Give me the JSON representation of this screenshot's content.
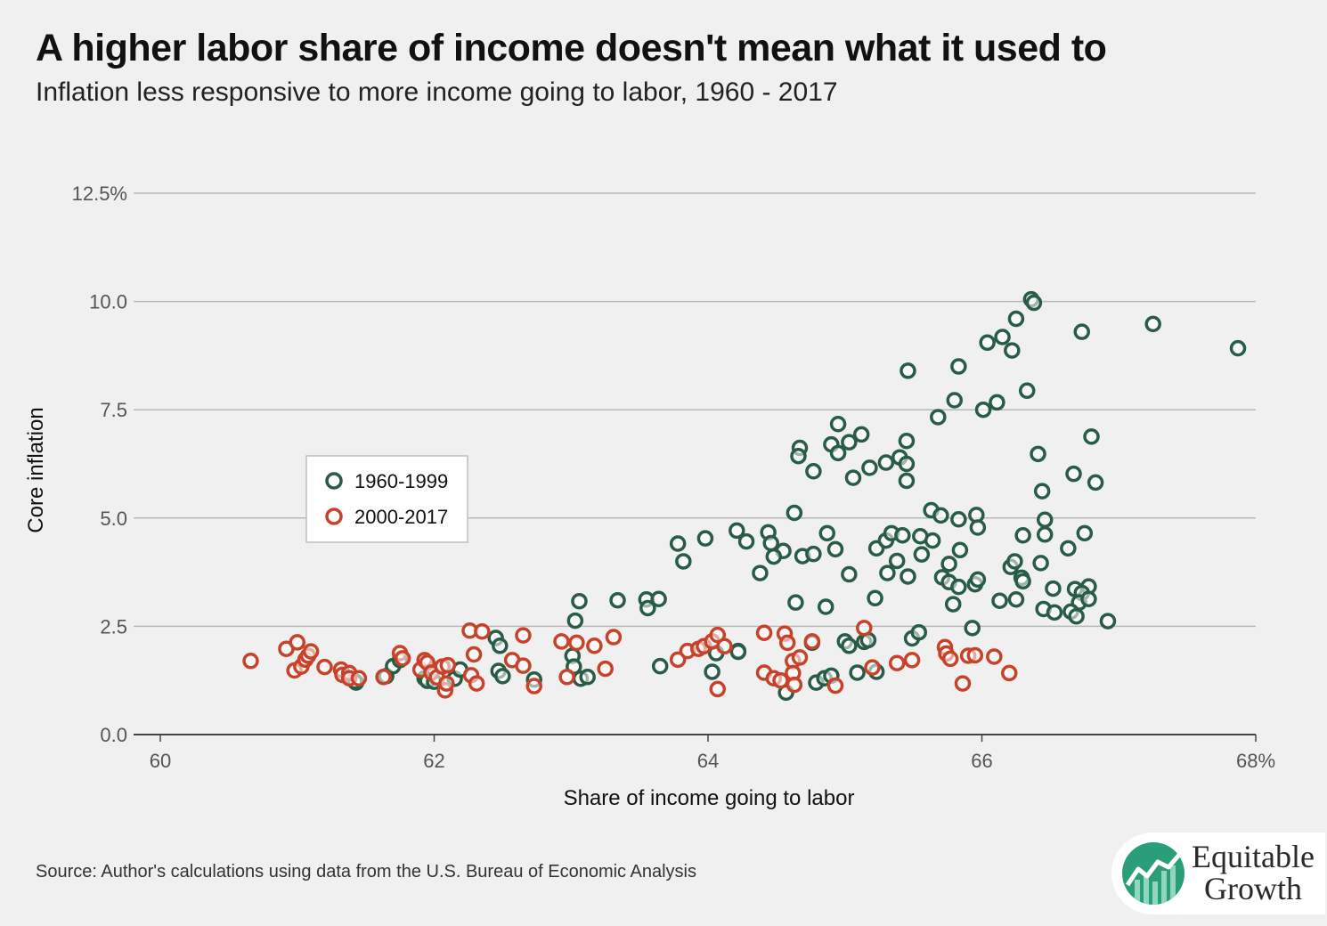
{
  "header": {
    "title": "A higher labor share of income doesn't mean what it used to",
    "subtitle": "Inflation less responsive to more income going to labor, 1960 - 2017"
  },
  "footer": {
    "source": "Source: Author's calculations using data from the U.S. Bureau of Economic Analysis"
  },
  "logo": {
    "line1": "Equitable",
    "line2": "Growth"
  },
  "colors": {
    "series1": "#285c46",
    "series2": "#c8422a",
    "grid": "#b8b8b8",
    "background": "#f0f0f0"
  },
  "chart_data": {
    "type": "scatter",
    "xlabel": "Share of income going to labor",
    "ylabel": "Core inflation",
    "xlim": [
      60,
      68
    ],
    "ylim": [
      0,
      12.5
    ],
    "x_ticks": [
      "60",
      "62",
      "64",
      "66",
      "68%"
    ],
    "y_ticks": [
      "0.0",
      "2.5",
      "5.0",
      "7.5",
      "10.0",
      "12.5%"
    ],
    "grid": "horizontal",
    "legend_position": "left-middle",
    "series": [
      {
        "name": "1960-1999",
        "color": "#285c46",
        "points": [
          [
            66.36,
            10.05
          ],
          [
            66.38,
            9.97
          ],
          [
            67.25,
            9.48
          ],
          [
            67.87,
            8.92
          ],
          [
            66.73,
            9.3
          ],
          [
            66.25,
            9.6
          ],
          [
            66.15,
            9.18
          ],
          [
            66.04,
            9.05
          ],
          [
            66.22,
            8.87
          ],
          [
            65.46,
            8.4
          ],
          [
            65.83,
            8.5
          ],
          [
            66.11,
            7.67
          ],
          [
            66.01,
            7.5
          ],
          [
            65.8,
            7.72
          ],
          [
            66.33,
            7.94
          ],
          [
            65.68,
            7.33
          ],
          [
            64.67,
            6.62
          ],
          [
            64.66,
            6.43
          ],
          [
            64.77,
            6.08
          ],
          [
            64.95,
            7.17
          ],
          [
            64.9,
            6.7
          ],
          [
            64.95,
            6.5
          ],
          [
            65.03,
            6.75
          ],
          [
            65.12,
            6.93
          ],
          [
            65.06,
            5.93
          ],
          [
            65.18,
            6.16
          ],
          [
            65.3,
            6.28
          ],
          [
            65.45,
            6.78
          ],
          [
            65.4,
            6.4
          ],
          [
            65.45,
            6.25
          ],
          [
            65.45,
            5.86
          ],
          [
            66.8,
            6.88
          ],
          [
            66.41,
            6.48
          ],
          [
            66.67,
            6.02
          ],
          [
            66.83,
            5.82
          ],
          [
            66.44,
            5.62
          ],
          [
            64.63,
            5.12
          ],
          [
            65.63,
            5.18
          ],
          [
            65.7,
            5.06
          ],
          [
            65.96,
            5.07
          ],
          [
            65.83,
            4.97
          ],
          [
            65.97,
            4.78
          ],
          [
            66.46,
            4.96
          ],
          [
            66.46,
            4.62
          ],
          [
            66.3,
            4.6
          ],
          [
            66.75,
            4.65
          ],
          [
            64.21,
            4.71
          ],
          [
            64.44,
            4.67
          ],
          [
            64.28,
            4.46
          ],
          [
            64.46,
            4.42
          ],
          [
            64.55,
            4.24
          ],
          [
            64.48,
            4.11
          ],
          [
            64.69,
            4.12
          ],
          [
            64.77,
            4.17
          ],
          [
            64.87,
            4.65
          ],
          [
            64.93,
            4.28
          ],
          [
            65.03,
            3.7
          ],
          [
            63.98,
            4.53
          ],
          [
            63.78,
            4.41
          ],
          [
            63.82,
            4
          ],
          [
            64.38,
            3.73
          ],
          [
            65.23,
            4.3
          ],
          [
            65.3,
            4.48
          ],
          [
            65.34,
            4.65
          ],
          [
            65.42,
            4.6
          ],
          [
            65.38,
            4.01
          ],
          [
            65.31,
            3.73
          ],
          [
            65.46,
            3.65
          ],
          [
            65.55,
            4.58
          ],
          [
            65.56,
            4.16
          ],
          [
            65.64,
            4.48
          ],
          [
            65.76,
            3.94
          ],
          [
            65.84,
            4.26
          ],
          [
            65.71,
            3.63
          ],
          [
            65.76,
            3.52
          ],
          [
            65.83,
            3.41
          ],
          [
            65.95,
            3.47
          ],
          [
            65.97,
            3.58
          ],
          [
            66.21,
            3.87
          ],
          [
            66.24,
            4
          ],
          [
            66.29,
            3.62
          ],
          [
            66.3,
            3.54
          ],
          [
            66.63,
            4.3
          ],
          [
            66.68,
            3.36
          ],
          [
            66.52,
            3.37
          ],
          [
            66.43,
            3.96
          ],
          [
            66.78,
            3.42
          ],
          [
            66.73,
            3.27
          ],
          [
            66.71,
            3.05
          ],
          [
            66.78,
            3.13
          ],
          [
            66.13,
            3.09
          ],
          [
            66.25,
            3.12
          ],
          [
            65.79,
            3.01
          ],
          [
            64.64,
            3.05
          ],
          [
            65.22,
            3.15
          ],
          [
            64.86,
            2.95
          ],
          [
            65.93,
            2.46
          ],
          [
            66.45,
            2.9
          ],
          [
            66.53,
            2.82
          ],
          [
            66.65,
            2.84
          ],
          [
            66.69,
            2.73
          ],
          [
            66.92,
            2.62
          ],
          [
            63.06,
            3.08
          ],
          [
            63.34,
            3.1
          ],
          [
            63.55,
            3.12
          ],
          [
            63.56,
            2.92
          ],
          [
            63.64,
            3.13
          ],
          [
            63.03,
            2.63
          ],
          [
            62.45,
            2.23
          ],
          [
            62.48,
            2.05
          ],
          [
            63.01,
            1.82
          ],
          [
            63.02,
            1.57
          ],
          [
            63.07,
            1.29
          ],
          [
            63.12,
            1.33
          ],
          [
            62.73,
            1.27
          ],
          [
            62.47,
            1.47
          ],
          [
            62.5,
            1.35
          ],
          [
            63.65,
            1.58
          ],
          [
            64.03,
            1.45
          ],
          [
            64.06,
            1.88
          ],
          [
            64.22,
            1.93
          ],
          [
            64.22,
            1.91
          ],
          [
            64.57,
            0.97
          ],
          [
            64.76,
            2.12
          ],
          [
            64.79,
            1.2
          ],
          [
            64.85,
            1.3
          ],
          [
            64.9,
            1.36
          ],
          [
            65.0,
            2.15
          ],
          [
            65.03,
            2.05
          ],
          [
            65.09,
            1.43
          ],
          [
            65.14,
            2.14
          ],
          [
            65.17,
            2.18
          ],
          [
            65.23,
            1.45
          ],
          [
            65.49,
            2.22
          ],
          [
            65.54,
            2.36
          ],
          [
            61.43,
            1.2
          ],
          [
            61.42,
            1.23
          ],
          [
            61.65,
            1.35
          ],
          [
            61.7,
            1.58
          ],
          [
            61.75,
            1.72
          ],
          [
            61.93,
            1.3
          ],
          [
            61.95,
            1.24
          ],
          [
            62.0,
            1.22
          ],
          [
            62.15,
            1.29
          ],
          [
            62.19,
            1.5
          ]
        ]
      },
      {
        "name": "2000-2017",
        "color": "#c8422a",
        "points": [
          [
            60.66,
            1.7
          ],
          [
            60.92,
            1.98
          ],
          [
            60.98,
            1.48
          ],
          [
            61.0,
            2.13
          ],
          [
            61.03,
            1.57
          ],
          [
            61.06,
            1.73
          ],
          [
            61.08,
            1.82
          ],
          [
            61.1,
            1.92
          ],
          [
            61.2,
            1.56
          ],
          [
            61.32,
            1.5
          ],
          [
            61.33,
            1.38
          ],
          [
            61.38,
            1.42
          ],
          [
            61.38,
            1.3
          ],
          [
            61.45,
            1.3
          ],
          [
            61.63,
            1.33
          ],
          [
            61.75,
            1.88
          ],
          [
            61.77,
            1.76
          ],
          [
            61.9,
            1.5
          ],
          [
            61.93,
            1.72
          ],
          [
            61.95,
            1.66
          ],
          [
            61.98,
            1.43
          ],
          [
            62.02,
            1.32
          ],
          [
            62.06,
            1.57
          ],
          [
            62.08,
            1.02
          ],
          [
            62.09,
            1.18
          ],
          [
            62.1,
            1.6
          ],
          [
            62.26,
            2.4
          ],
          [
            62.27,
            1.37
          ],
          [
            62.29,
            1.85
          ],
          [
            62.31,
            1.18
          ],
          [
            62.35,
            2.38
          ],
          [
            62.57,
            1.72
          ],
          [
            62.65,
            1.59
          ],
          [
            62.65,
            2.29
          ],
          [
            62.73,
            1.12
          ],
          [
            62.93,
            2.15
          ],
          [
            62.97,
            1.33
          ],
          [
            63.04,
            2.12
          ],
          [
            63.17,
            2.05
          ],
          [
            63.25,
            1.52
          ],
          [
            63.31,
            2.25
          ],
          [
            63.78,
            1.73
          ],
          [
            63.85,
            1.93
          ],
          [
            63.93,
            1.98
          ],
          [
            63.97,
            2.04
          ],
          [
            64.03,
            2.15
          ],
          [
            64.07,
            2.3
          ],
          [
            64.12,
            2.04
          ],
          [
            64.07,
            1.05
          ],
          [
            64.41,
            2.35
          ],
          [
            64.41,
            1.43
          ],
          [
            64.48,
            1.3
          ],
          [
            64.53,
            1.25
          ],
          [
            64.56,
            2.33
          ],
          [
            64.58,
            2.12
          ],
          [
            64.62,
            1.7
          ],
          [
            64.62,
            1.42
          ],
          [
            64.63,
            1.15
          ],
          [
            64.67,
            1.78
          ],
          [
            64.76,
            2.15
          ],
          [
            64.93,
            1.13
          ],
          [
            65.14,
            2.46
          ],
          [
            65.2,
            1.55
          ],
          [
            65.38,
            1.65
          ],
          [
            65.49,
            1.72
          ],
          [
            65.73,
            2.02
          ],
          [
            65.74,
            1.87
          ],
          [
            65.77,
            1.75
          ],
          [
            65.86,
            1.18
          ],
          [
            65.9,
            1.82
          ],
          [
            65.95,
            1.83
          ],
          [
            66.09,
            1.8
          ],
          [
            66.2,
            1.42
          ]
        ]
      }
    ]
  }
}
